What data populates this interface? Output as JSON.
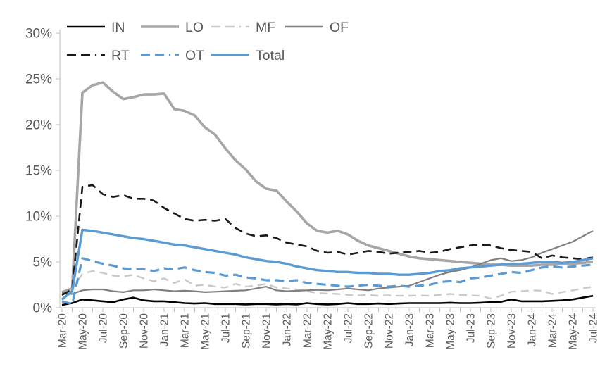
{
  "chart_data": {
    "type": "line",
    "title": "",
    "xlabel": "",
    "ylabel": "",
    "ylim": [
      0,
      30
    ],
    "y_tick_values": [
      0,
      5,
      10,
      15,
      20,
      25,
      30
    ],
    "y_tick_labels": [
      "0%",
      "5%",
      "10%",
      "15%",
      "20%",
      "25%",
      "30%"
    ],
    "grid": false,
    "legend_position": "top",
    "x_label_every": 2,
    "x": [
      "Mar-20",
      "Apr-20",
      "May-20",
      "Jun-20",
      "Jul-20",
      "Aug-20",
      "Sep-20",
      "Oct-20",
      "Nov-20",
      "Dec-20",
      "Jan-21",
      "Feb-21",
      "Mar-21",
      "Apr-21",
      "May-21",
      "Jun-21",
      "Jul-21",
      "Aug-21",
      "Sep-21",
      "Oct-21",
      "Nov-21",
      "Dec-21",
      "Jan-22",
      "Feb-22",
      "Mar-22",
      "Apr-22",
      "May-22",
      "Jun-22",
      "Jul-22",
      "Aug-22",
      "Sep-22",
      "Oct-22",
      "Nov-22",
      "Dec-22",
      "Jan-23",
      "Feb-23",
      "Mar-23",
      "Apr-23",
      "May-23",
      "Jun-23",
      "Jul-23",
      "Aug-23",
      "Sep-23",
      "Oct-23",
      "Nov-23",
      "Dec-23",
      "Jan-24",
      "Feb-24",
      "Mar-24",
      "Apr-24",
      "May-24",
      "Jun-24",
      "Jul-24"
    ],
    "axis_color": "#bfbfbf",
    "text_color": "#595959",
    "series": [
      {
        "name": "IN",
        "color": "#000000",
        "dash": "solid",
        "width": 2.6,
        "values": [
          0.3,
          0.5,
          0.9,
          0.8,
          0.7,
          0.6,
          0.9,
          1.1,
          0.8,
          0.7,
          0.7,
          0.6,
          0.5,
          0.45,
          0.5,
          0.4,
          0.4,
          0.4,
          0.35,
          0.4,
          0.4,
          0.35,
          0.4,
          0.35,
          0.5,
          0.4,
          0.35,
          0.4,
          0.5,
          0.4,
          0.4,
          0.45,
          0.4,
          0.45,
          0.5,
          0.5,
          0.5,
          0.5,
          0.55,
          0.5,
          0.5,
          0.55,
          0.6,
          0.65,
          0.9,
          0.7,
          0.7,
          0.7,
          0.75,
          0.8,
          0.9,
          1.1,
          1.3
        ]
      },
      {
        "name": "LO",
        "color": "#a6a6a6",
        "dash": "solid",
        "width": 3.6,
        "values": [
          1.7,
          2.1,
          23.5,
          24.3,
          24.6,
          23.6,
          22.8,
          23.0,
          23.3,
          23.3,
          23.4,
          21.7,
          21.5,
          21.0,
          19.7,
          18.9,
          17.4,
          16.1,
          15.1,
          13.8,
          13.0,
          12.8,
          11.6,
          10.5,
          9.2,
          8.4,
          8.2,
          8.4,
          8.0,
          7.3,
          6.8,
          6.5,
          6.2,
          5.9,
          5.6,
          5.4,
          5.3,
          5.2,
          5.1,
          5.0,
          4.9,
          4.8,
          4.7,
          4.7,
          4.6,
          4.6,
          4.6,
          4.7,
          4.7,
          4.8,
          4.8,
          4.9,
          5.0
        ]
      },
      {
        "name": "MF",
        "color": "#c9c9c9",
        "dash": "dashed",
        "width": 2.4,
        "values": [
          0.9,
          2.0,
          3.7,
          4.0,
          3.8,
          3.5,
          3.4,
          3.6,
          3.2,
          2.9,
          3.2,
          2.7,
          3.1,
          2.4,
          2.5,
          2.3,
          2.2,
          2.6,
          2.3,
          2.4,
          2.6,
          2.2,
          2.1,
          2.0,
          1.8,
          1.6,
          1.55,
          1.5,
          1.4,
          1.35,
          1.4,
          1.3,
          1.35,
          1.3,
          1.3,
          1.35,
          1.3,
          1.4,
          1.5,
          1.4,
          1.35,
          1.3,
          1.0,
          1.3,
          1.75,
          1.8,
          1.9,
          1.85,
          1.5,
          1.7,
          1.9,
          2.1,
          2.3
        ]
      },
      {
        "name": "OF",
        "color": "#7f7f7f",
        "dash": "solid",
        "width": 2.2,
        "values": [
          1.6,
          1.5,
          1.9,
          2.0,
          2.0,
          1.8,
          1.7,
          1.9,
          1.9,
          2.0,
          1.9,
          1.8,
          1.85,
          1.8,
          1.7,
          1.75,
          1.8,
          1.85,
          1.9,
          2.1,
          2.3,
          1.9,
          1.8,
          1.85,
          1.9,
          1.95,
          1.9,
          2.0,
          2.1,
          2.0,
          1.9,
          2.1,
          2.2,
          2.3,
          2.4,
          2.8,
          3.2,
          3.6,
          3.9,
          4.1,
          4.4,
          4.8,
          5.2,
          5.4,
          5.1,
          5.2,
          5.5,
          6.0,
          6.4,
          6.8,
          7.2,
          7.8,
          8.4
        ]
      },
      {
        "name": "RT",
        "color": "#1a1a1a",
        "dash": "dashed",
        "width": 2.6,
        "values": [
          1.4,
          2.0,
          13.2,
          13.4,
          12.4,
          12.1,
          12.3,
          11.9,
          11.9,
          11.7,
          10.9,
          10.3,
          9.7,
          9.5,
          9.6,
          9.5,
          9.7,
          8.7,
          8.1,
          7.8,
          7.9,
          7.6,
          7.1,
          6.9,
          6.7,
          6.2,
          6.0,
          6.1,
          5.8,
          6.0,
          6.2,
          6.1,
          5.9,
          6.0,
          6.1,
          6.2,
          6.0,
          6.1,
          6.4,
          6.6,
          6.8,
          6.9,
          6.8,
          6.5,
          6.3,
          6.2,
          6.1,
          5.4,
          5.7,
          5.5,
          5.4,
          5.3,
          5.5
        ]
      },
      {
        "name": "OT",
        "color": "#5b9bd5",
        "dash": "dashed",
        "width": 3.2,
        "values": [
          0.7,
          0.4,
          5.4,
          5.1,
          4.8,
          4.6,
          4.3,
          4.2,
          4.2,
          4.0,
          4.3,
          4.2,
          4.4,
          4.1,
          3.9,
          3.8,
          3.5,
          3.6,
          3.3,
          3.2,
          3.0,
          3.0,
          2.9,
          3.0,
          2.7,
          2.6,
          2.5,
          2.4,
          2.3,
          2.4,
          2.5,
          2.4,
          2.3,
          2.4,
          2.3,
          2.4,
          2.5,
          2.8,
          2.9,
          2.8,
          3.2,
          3.3,
          3.5,
          3.7,
          3.9,
          3.8,
          4.1,
          4.4,
          4.5,
          4.4,
          4.5,
          4.6,
          4.7
        ]
      },
      {
        "name": "Total",
        "color": "#5b9bd5",
        "dash": "solid",
        "width": 3.4,
        "values": [
          0.9,
          1.8,
          8.5,
          8.4,
          8.2,
          8.0,
          7.8,
          7.6,
          7.5,
          7.3,
          7.1,
          6.9,
          6.8,
          6.6,
          6.4,
          6.2,
          6.0,
          5.8,
          5.5,
          5.3,
          5.1,
          5.0,
          4.8,
          4.5,
          4.3,
          4.1,
          4.0,
          3.9,
          3.9,
          3.8,
          3.8,
          3.7,
          3.7,
          3.6,
          3.6,
          3.7,
          3.8,
          4.0,
          4.1,
          4.3,
          4.4,
          4.5,
          4.6,
          4.7,
          4.8,
          4.8,
          4.9,
          5.0,
          5.0,
          4.9,
          5.0,
          5.2,
          5.4
        ]
      }
    ],
    "legend": {
      "rows": [
        [
          "IN",
          "LO",
          "MF",
          "OF"
        ],
        [
          "RT",
          "OT",
          "Total"
        ]
      ]
    }
  }
}
